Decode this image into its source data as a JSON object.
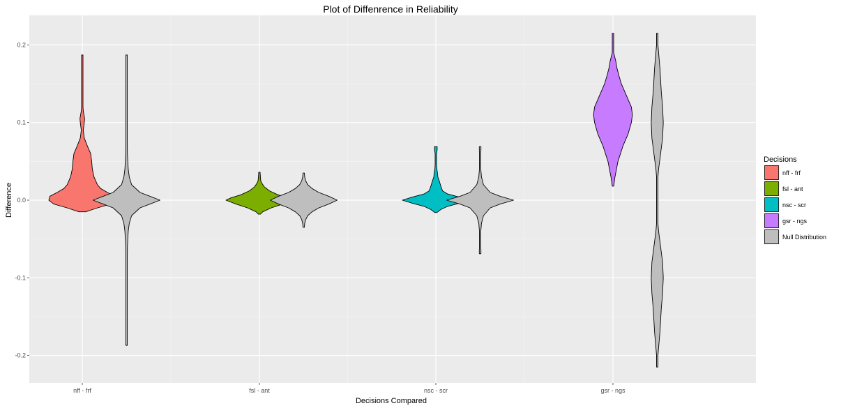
{
  "chart_data": {
    "type": "violin",
    "title": "Plot of Diffenrence in Reliability",
    "xlabel": "Decisions Compared",
    "ylabel": "Difference",
    "ylim": [
      -0.235,
      0.235
    ],
    "y_ticks": [
      -0.2,
      -0.1,
      0.0,
      0.1,
      0.2
    ],
    "y_tick_labels": [
      "-0.2",
      "-0.1",
      "0.0",
      "0.1",
      "0.2"
    ],
    "categories": [
      "nff - frf",
      "fsl - ant",
      "nsc - scr",
      "gsr - ngs"
    ],
    "grid": true,
    "legend_position": "right",
    "legend": {
      "title": "Decisions",
      "entries": [
        {
          "label": "nff - frf",
          "color": "#F8766D"
        },
        {
          "label": "fsl - ant",
          "color": "#7CAE00"
        },
        {
          "label": "nsc - scr",
          "color": "#00BFC4"
        },
        {
          "label": "gsr - ngs",
          "color": "#C77CFF"
        },
        {
          "label": "Null Distribution",
          "color": "#BEBEBE"
        }
      ]
    },
    "violins": [
      {
        "category": "nff - frf",
        "group": "observed",
        "series": "nff - frf",
        "color": "#F8766D",
        "min": -0.015,
        "max": 0.187,
        "profile": [
          [
            -0.015,
            0.1
          ],
          [
            -0.01,
            0.45
          ],
          [
            -0.005,
            0.85
          ],
          [
            0.0,
            1.0
          ],
          [
            0.005,
            0.97
          ],
          [
            0.01,
            0.75
          ],
          [
            0.015,
            0.55
          ],
          [
            0.02,
            0.45
          ],
          [
            0.03,
            0.35
          ],
          [
            0.04,
            0.3
          ],
          [
            0.05,
            0.28
          ],
          [
            0.06,
            0.25
          ],
          [
            0.07,
            0.15
          ],
          [
            0.08,
            0.06
          ],
          [
            0.09,
            0.03
          ],
          [
            0.1,
            0.06
          ],
          [
            0.105,
            0.07
          ],
          [
            0.11,
            0.05
          ],
          [
            0.115,
            0.03
          ],
          [
            0.12,
            0.015
          ],
          [
            0.13,
            0.008
          ],
          [
            0.15,
            0.005
          ],
          [
            0.17,
            0.005
          ],
          [
            0.187,
            0.004
          ]
        ]
      },
      {
        "category": "nff - frf",
        "group": "null",
        "series": "Null Distribution",
        "color": "#BEBEBE",
        "min": -0.187,
        "max": 0.187,
        "profile": [
          [
            -0.187,
            0.004
          ],
          [
            -0.15,
            0.006
          ],
          [
            -0.12,
            0.008
          ],
          [
            -0.1,
            0.01
          ],
          [
            -0.08,
            0.015
          ],
          [
            -0.06,
            0.025
          ],
          [
            -0.04,
            0.05
          ],
          [
            -0.03,
            0.08
          ],
          [
            -0.02,
            0.15
          ],
          [
            -0.01,
            0.4
          ],
          [
            -0.005,
            0.7
          ],
          [
            0.0,
            1.0
          ],
          [
            0.005,
            0.7
          ],
          [
            0.01,
            0.4
          ],
          [
            0.02,
            0.15
          ],
          [
            0.03,
            0.08
          ],
          [
            0.04,
            0.05
          ],
          [
            0.06,
            0.025
          ],
          [
            0.08,
            0.015
          ],
          [
            0.1,
            0.01
          ],
          [
            0.12,
            0.008
          ],
          [
            0.15,
            0.006
          ],
          [
            0.187,
            0.004
          ]
        ]
      },
      {
        "category": "fsl - ant",
        "group": "observed",
        "series": "fsl - ant",
        "color": "#7CAE00",
        "min": -0.018,
        "max": 0.036,
        "profile": [
          [
            -0.018,
            0.03
          ],
          [
            -0.015,
            0.1
          ],
          [
            -0.01,
            0.35
          ],
          [
            -0.005,
            0.7
          ],
          [
            0.0,
            1.0
          ],
          [
            0.003,
            0.85
          ],
          [
            0.007,
            0.55
          ],
          [
            0.012,
            0.3
          ],
          [
            0.017,
            0.15
          ],
          [
            0.022,
            0.07
          ],
          [
            0.025,
            0.04
          ],
          [
            0.03,
            0.03
          ],
          [
            0.036,
            0.02
          ]
        ]
      },
      {
        "category": "fsl - ant",
        "group": "null",
        "series": "Null Distribution",
        "color": "#BEBEBE",
        "min": -0.035,
        "max": 0.035,
        "profile": [
          [
            -0.035,
            0.02
          ],
          [
            -0.03,
            0.03
          ],
          [
            -0.025,
            0.06
          ],
          [
            -0.02,
            0.12
          ],
          [
            -0.015,
            0.25
          ],
          [
            -0.01,
            0.45
          ],
          [
            -0.005,
            0.75
          ],
          [
            0.0,
            1.0
          ],
          [
            0.005,
            0.75
          ],
          [
            0.01,
            0.45
          ],
          [
            0.015,
            0.25
          ],
          [
            0.02,
            0.12
          ],
          [
            0.025,
            0.06
          ],
          [
            0.03,
            0.03
          ],
          [
            0.035,
            0.02
          ]
        ]
      },
      {
        "category": "nsc - scr",
        "group": "observed",
        "series": "nsc - scr",
        "color": "#00BFC4",
        "min": -0.016,
        "max": 0.069,
        "profile": [
          [
            -0.016,
            0.03
          ],
          [
            -0.012,
            0.15
          ],
          [
            -0.008,
            0.35
          ],
          [
            -0.004,
            0.7
          ],
          [
            0.0,
            1.0
          ],
          [
            0.004,
            0.7
          ],
          [
            0.008,
            0.35
          ],
          [
            0.012,
            0.2
          ],
          [
            0.018,
            0.15
          ],
          [
            0.025,
            0.1
          ],
          [
            0.03,
            0.06
          ],
          [
            0.035,
            0.05
          ],
          [
            0.04,
            0.03
          ],
          [
            0.045,
            0.02
          ],
          [
            0.05,
            0.015
          ],
          [
            0.055,
            0.015
          ],
          [
            0.06,
            0.02
          ],
          [
            0.065,
            0.04
          ],
          [
            0.069,
            0.04
          ]
        ]
      },
      {
        "category": "nsc - scr",
        "group": "null",
        "series": "Null Distribution",
        "color": "#BEBEBE",
        "min": -0.069,
        "max": 0.069,
        "profile": [
          [
            -0.069,
            0.025
          ],
          [
            -0.066,
            0.025
          ],
          [
            -0.06,
            0.015
          ],
          [
            -0.05,
            0.015
          ],
          [
            -0.04,
            0.02
          ],
          [
            -0.03,
            0.04
          ],
          [
            -0.02,
            0.1
          ],
          [
            -0.01,
            0.3
          ],
          [
            -0.005,
            0.6
          ],
          [
            0.0,
            1.0
          ],
          [
            0.005,
            0.6
          ],
          [
            0.01,
            0.3
          ],
          [
            0.02,
            0.1
          ],
          [
            0.03,
            0.04
          ],
          [
            0.04,
            0.02
          ],
          [
            0.05,
            0.015
          ],
          [
            0.06,
            0.015
          ],
          [
            0.066,
            0.025
          ],
          [
            0.069,
            0.025
          ]
        ]
      },
      {
        "category": "gsr - ngs",
        "group": "observed",
        "series": "gsr - ngs",
        "color": "#C77CFF",
        "min": 0.018,
        "max": 0.215,
        "profile": [
          [
            0.018,
            0.02
          ],
          [
            0.03,
            0.06
          ],
          [
            0.05,
            0.15
          ],
          [
            0.07,
            0.3
          ],
          [
            0.085,
            0.45
          ],
          [
            0.1,
            0.55
          ],
          [
            0.11,
            0.58
          ],
          [
            0.12,
            0.55
          ],
          [
            0.13,
            0.45
          ],
          [
            0.14,
            0.35
          ],
          [
            0.15,
            0.25
          ],
          [
            0.16,
            0.18
          ],
          [
            0.17,
            0.12
          ],
          [
            0.18,
            0.08
          ],
          [
            0.185,
            0.05
          ],
          [
            0.19,
            0.02
          ],
          [
            0.2,
            0.008
          ],
          [
            0.215,
            0.005
          ]
        ]
      },
      {
        "category": "gsr - ngs",
        "group": "null",
        "series": "Null Distribution",
        "color": "#BEBEBE",
        "min": -0.215,
        "max": 0.215,
        "profile": [
          [
            -0.215,
            0.005
          ],
          [
            -0.2,
            0.008
          ],
          [
            -0.17,
            0.08
          ],
          [
            -0.14,
            0.12
          ],
          [
            -0.12,
            0.16
          ],
          [
            -0.1,
            0.18
          ],
          [
            -0.08,
            0.16
          ],
          [
            -0.06,
            0.1
          ],
          [
            -0.04,
            0.04
          ],
          [
            -0.03,
            0.015
          ],
          [
            -0.01,
            0.005
          ],
          [
            0.0,
            0.004
          ],
          [
            0.01,
            0.005
          ],
          [
            0.03,
            0.015
          ],
          [
            0.04,
            0.04
          ],
          [
            0.06,
            0.1
          ],
          [
            0.08,
            0.16
          ],
          [
            0.1,
            0.18
          ],
          [
            0.12,
            0.16
          ],
          [
            0.14,
            0.12
          ],
          [
            0.17,
            0.08
          ],
          [
            0.2,
            0.008
          ],
          [
            0.215,
            0.005
          ]
        ]
      }
    ]
  }
}
